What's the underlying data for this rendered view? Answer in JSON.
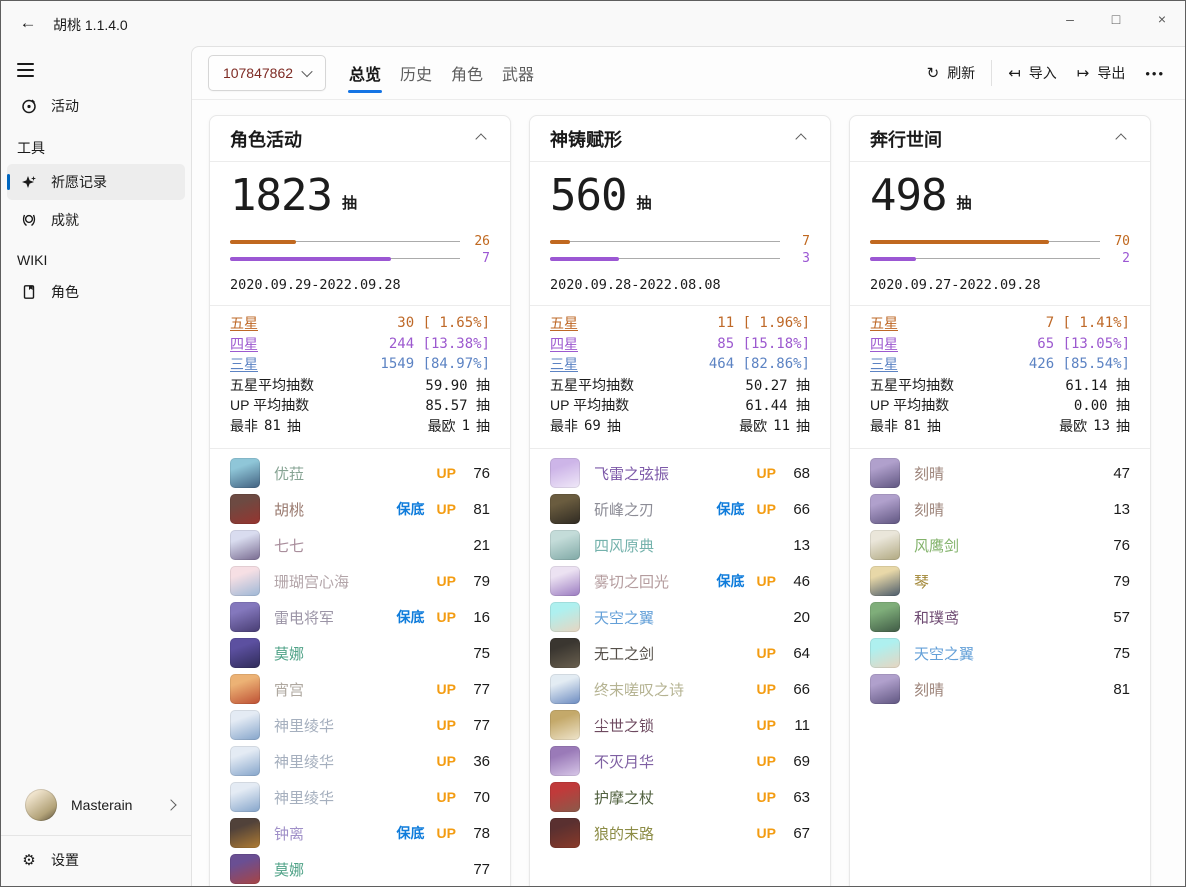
{
  "window": {
    "title": "胡桃 1.1.4.0",
    "controls": {
      "minimize": "–",
      "maximize": "□",
      "close": "×"
    }
  },
  "sidebar": {
    "activity": {
      "label": "活动"
    },
    "tools_header": "工具",
    "wish_records": {
      "label": "祈愿记录",
      "selected": true
    },
    "achievements": {
      "label": "成就"
    },
    "wiki_header": "WIKI",
    "characters": {
      "label": "角色"
    },
    "user": {
      "name": "Masterain"
    },
    "settings_label": "设置"
  },
  "toolbar": {
    "uid": "107847862",
    "tabs": [
      {
        "label": "总览",
        "selected": true
      },
      {
        "label": "历史",
        "selected": false
      },
      {
        "label": "角色",
        "selected": false
      },
      {
        "label": "武器",
        "selected": false
      }
    ],
    "refresh_label": "刷新",
    "import_label": "导入",
    "export_label": "导出",
    "more_label": "•••"
  },
  "colors": {
    "accent": "#0067C0",
    "tab_underline": "#1474E4",
    "five_star": "#BE6827",
    "four_star": "#9C59CF",
    "three_star": "#5C83C3",
    "up_badge": "#F39C12",
    "guarantee_badge": "#0F7CDB",
    "uid_text": "#7E2B24"
  },
  "banners": [
    {
      "title": "角色活动",
      "total": "1823",
      "unit": "抽",
      "pity_five": {
        "value": 26,
        "max": 90
      },
      "pity_four": {
        "value": 7,
        "max": 10
      },
      "date_range": "2020.09.29-2022.09.28",
      "stat_rows": [
        {
          "label": "五星",
          "value": "30 [ 1.65%]",
          "type": "five"
        },
        {
          "label": "四星",
          "value": "244 [13.38%]",
          "type": "four"
        },
        {
          "label": "三星",
          "value": "1549 [84.97%]",
          "type": "three"
        },
        {
          "label": "五星平均抽数",
          "value": "59.90 抽",
          "type": "plain"
        },
        {
          "label": "UP 平均抽数",
          "value": "85.57 抽",
          "type": "plain"
        }
      ],
      "worst": {
        "label": "最非",
        "value": "81",
        "unit": "抽"
      },
      "best": {
        "label": "最欧",
        "value": "1",
        "unit": "抽"
      },
      "items": [
        {
          "name": "优菈",
          "color": "#86A393",
          "badges": [
            "UP"
          ],
          "count": "76",
          "avatar": [
            "#8fc6d8",
            "#41607f"
          ]
        },
        {
          "name": "胡桃",
          "color": "#9A7B70",
          "badges": [
            "保底",
            "UP"
          ],
          "count": "81",
          "avatar": [
            "#6d4a42",
            "#97342f"
          ]
        },
        {
          "name": "七七",
          "color": "#A98E9C",
          "badges": [],
          "count": "21",
          "avatar": [
            "#d9dcef",
            "#77698f"
          ]
        },
        {
          "name": "珊瑚宫心海",
          "color": "#B3A5A9",
          "badges": [
            "UP"
          ],
          "count": "79",
          "avatar": [
            "#f6dfe4",
            "#9db7d6"
          ]
        },
        {
          "name": "雷电将军",
          "color": "#9B94A6",
          "badges": [
            "保底",
            "UP"
          ],
          "count": "16",
          "avatar": [
            "#8478bd",
            "#473c72"
          ]
        },
        {
          "name": "莫娜",
          "color": "#4FA287",
          "badges": [],
          "count": "75",
          "avatar": [
            "#5c50a0",
            "#2f2b58"
          ]
        },
        {
          "name": "宵宫",
          "color": "#AFA8A0",
          "badges": [
            "UP"
          ],
          "count": "77",
          "avatar": [
            "#ecb275",
            "#bd4f33"
          ]
        },
        {
          "name": "神里绫华",
          "color": "#A5AFBE",
          "badges": [
            "UP"
          ],
          "count": "77",
          "avatar": [
            "#e4ebf4",
            "#84a4ca"
          ]
        },
        {
          "name": "神里绫华",
          "color": "#A5AFBE",
          "badges": [
            "UP"
          ],
          "count": "36",
          "avatar": [
            "#e4ebf4",
            "#84a4ca"
          ]
        },
        {
          "name": "神里绫华",
          "color": "#A5AFBE",
          "badges": [
            "UP"
          ],
          "count": "70",
          "avatar": [
            "#e4ebf4",
            "#84a4ca"
          ]
        },
        {
          "name": "钟离",
          "color": "#A090C8",
          "badges": [
            "保底",
            "UP"
          ],
          "count": "78",
          "avatar": [
            "#51423a",
            "#b07c33"
          ]
        },
        {
          "name": "莫娜",
          "color": "#4FA287",
          "badges": [],
          "count": "77",
          "avatar": [
            "#6a4f93",
            "#a84444"
          ]
        }
      ]
    },
    {
      "title": "神铸赋形",
      "total": "560",
      "unit": "抽",
      "pity_five": {
        "value": 7,
        "max": 80
      },
      "pity_four": {
        "value": 3,
        "max": 10
      },
      "date_range": "2020.09.28-2022.08.08",
      "stat_rows": [
        {
          "label": "五星",
          "value": "11 [ 1.96%]",
          "type": "five"
        },
        {
          "label": "四星",
          "value": "85 [15.18%]",
          "type": "four"
        },
        {
          "label": "三星",
          "value": "464 [82.86%]",
          "type": "three"
        },
        {
          "label": "五星平均抽数",
          "value": "50.27 抽",
          "type": "plain"
        },
        {
          "label": "UP 平均抽数",
          "value": "61.44 抽",
          "type": "plain"
        }
      ],
      "worst": {
        "label": "最非",
        "value": "69",
        "unit": "抽"
      },
      "best": {
        "label": "最欧",
        "value": "11",
        "unit": "抽"
      },
      "items": [
        {
          "name": "飞雷之弦振",
          "color": "#7C58A8",
          "badges": [
            "UP"
          ],
          "count": "68",
          "avatar": [
            "#cdb5e8",
            "#f0e9f8"
          ]
        },
        {
          "name": "斫峰之刃",
          "color": "#8C8C96",
          "badges": [
            "保底",
            "UP"
          ],
          "count": "66",
          "avatar": [
            "#6a5c3f",
            "#2f2a22"
          ]
        },
        {
          "name": "四风原典",
          "color": "#74B2AC",
          "badges": [],
          "count": "13",
          "avatar": [
            "#c4dcd9",
            "#7fa8a5"
          ]
        },
        {
          "name": "雾切之回光",
          "color": "#B49C9E",
          "badges": [
            "保底",
            "UP"
          ],
          "count": "46",
          "avatar": [
            "#ece2f2",
            "#9a7ac0"
          ]
        },
        {
          "name": "天空之翼",
          "color": "#64A0D8",
          "badges": [],
          "count": "20",
          "avatar": [
            "#aef0ef",
            "#e8d5c0"
          ]
        },
        {
          "name": "无工之剑",
          "color": "#56504A",
          "badges": [
            "UP"
          ],
          "count": "64",
          "avatar": [
            "#3a3630",
            "#6a604f"
          ]
        },
        {
          "name": "终末嗟叹之诗",
          "color": "#B5B392",
          "badges": [
            "UP"
          ],
          "count": "66",
          "avatar": [
            "#e3ecf3",
            "#6a8ac0"
          ]
        },
        {
          "name": "尘世之锁",
          "color": "#6E4A60",
          "badges": [
            "UP"
          ],
          "count": "11",
          "avatar": [
            "#c4a96a",
            "#efe5cc"
          ]
        },
        {
          "name": "不灭月华",
          "color": "#7E5FA2",
          "badges": [
            "UP"
          ],
          "count": "69",
          "avatar": [
            "#9a7ab8",
            "#d8c8e8"
          ]
        },
        {
          "name": "护摩之杖",
          "color": "#50603E",
          "badges": [
            "UP"
          ],
          "count": "63",
          "avatar": [
            "#c03a3a",
            "#8a5a4a"
          ]
        },
        {
          "name": "狼的末路",
          "color": "#8C8C46",
          "badges": [
            "UP"
          ],
          "count": "67",
          "avatar": [
            "#5a3030",
            "#8a3a2a"
          ]
        }
      ]
    },
    {
      "title": "奔行世间",
      "total": "498",
      "unit": "抽",
      "pity_five": {
        "value": 70,
        "max": 90
      },
      "pity_four": {
        "value": 2,
        "max": 10
      },
      "date_range": "2020.09.27-2022.09.28",
      "stat_rows": [
        {
          "label": "五星",
          "value": "7 [ 1.41%]",
          "type": "five"
        },
        {
          "label": "四星",
          "value": "65 [13.05%]",
          "type": "four"
        },
        {
          "label": "三星",
          "value": "426 [85.54%]",
          "type": "three"
        },
        {
          "label": "五星平均抽数",
          "value": "61.14 抽",
          "type": "plain"
        },
        {
          "label": "UP 平均抽数",
          "value": "0.00 抽",
          "type": "plain"
        }
      ],
      "worst": {
        "label": "最非",
        "value": "81",
        "unit": "抽"
      },
      "best": {
        "label": "最欧",
        "value": "13",
        "unit": "抽"
      },
      "items": [
        {
          "name": "刻晴",
          "color": "#9C8379",
          "badges": [],
          "count": "47",
          "avatar": [
            "#b0a0cc",
            "#5f5580"
          ]
        },
        {
          "name": "刻晴",
          "color": "#9C8379",
          "badges": [],
          "count": "13",
          "avatar": [
            "#b0a0cc",
            "#5f5580"
          ]
        },
        {
          "name": "风鹰剑",
          "color": "#82B26A",
          "badges": [],
          "count": "76",
          "avatar": [
            "#eae6da",
            "#b0a880"
          ]
        },
        {
          "name": "琴",
          "color": "#A08432",
          "badges": [],
          "count": "79",
          "avatar": [
            "#e8d8a8",
            "#4a5a6a"
          ]
        },
        {
          "name": "和璞鸢",
          "color": "#6E4A72",
          "badges": [],
          "count": "57",
          "avatar": [
            "#7fae7a",
            "#3f5a45"
          ]
        },
        {
          "name": "天空之翼",
          "color": "#64A0D8",
          "badges": [],
          "count": "75",
          "avatar": [
            "#aef0ef",
            "#e8d5c0"
          ]
        },
        {
          "name": "刻晴",
          "color": "#9C8379",
          "badges": [],
          "count": "81",
          "avatar": [
            "#b0a0cc",
            "#5f5580"
          ]
        }
      ]
    }
  ]
}
